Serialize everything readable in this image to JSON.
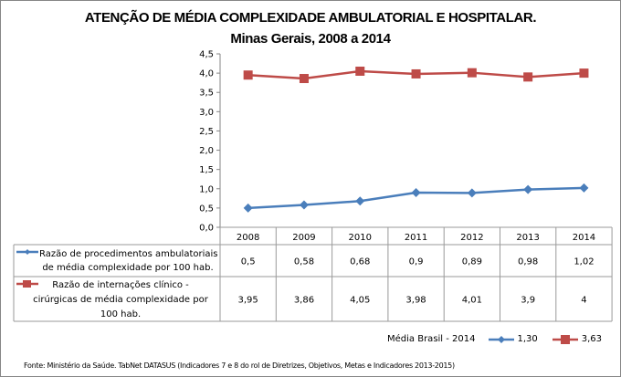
{
  "chart_data": {
    "type": "line",
    "title": "ATENÇÃO DE MÉDIA COMPLEXIDADE AMBULATORIAL E HOSPITALAR.",
    "subtitle": "Minas Gerais, 2008 a 2014",
    "categories": [
      "2008",
      "2009",
      "2010",
      "2011",
      "2012",
      "2013",
      "2014"
    ],
    "ylim": [
      0,
      4.5
    ],
    "yticks": [
      "0,0",
      "0,5",
      "1,0",
      "1,5",
      "2,0",
      "2,5",
      "3,0",
      "3,5",
      "4,0",
      "4,5"
    ],
    "grid": false,
    "xlabel": "",
    "ylabel": "",
    "series": [
      {
        "name": "Razão de procedimentos ambulatoriais de média complexidade por 100 hab.",
        "legend_lines": [
          "Razão de procedimentos ambulatoriais",
          "de média complexidade por 100 hab."
        ],
        "marker": "diamond",
        "color": "#4A7EBB",
        "values": [
          0.5,
          0.58,
          0.68,
          0.9,
          0.89,
          0.98,
          1.02
        ],
        "labels": [
          "0,5",
          "0,58",
          "0,68",
          "0,9",
          "0,89",
          "0,98",
          "1,02"
        ]
      },
      {
        "name": "Razão de internações clínico - cirúrgicas de média complexidade por 100 hab.",
        "legend_lines": [
          "Razão de internações clínico -",
          "cirúrgicas de média complexidade por",
          "100 hab."
        ],
        "marker": "square",
        "color": "#BE4B48",
        "values": [
          3.95,
          3.86,
          4.05,
          3.98,
          4.01,
          3.9,
          4
        ],
        "labels": [
          "3,95",
          "3,86",
          "4,05",
          "3,98",
          "4,01",
          "3,9",
          "4"
        ]
      }
    ],
    "legend": "data-table-below",
    "annotations": {
      "media_brasil_label": "Média Brasil - 2014",
      "media_brasil_values": [
        "1,30",
        "3,63"
      ]
    }
  },
  "footer": {
    "source": "Fonte: Ministério da Saúde. TabNet DATASUS (Indicadores 7 e 8 do rol de Diretrizes, Objetivos, Metas e Indicadores 2013-2015)"
  }
}
